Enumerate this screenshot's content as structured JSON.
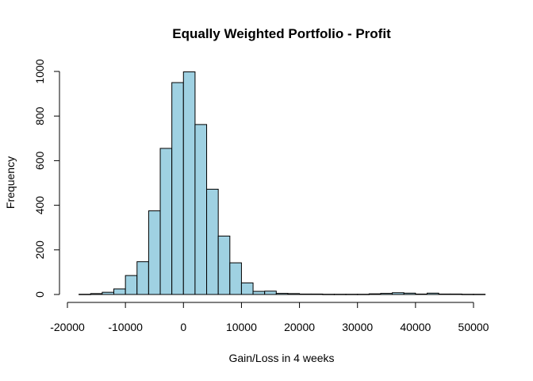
{
  "chart_data": {
    "type": "bar",
    "title": "Equally Weighted Portfolio - Profit",
    "xlabel": "Gain/Loss in 4 weeks",
    "ylabel": "Frequency",
    "bar_color": "#9fd1e2",
    "xlim": [
      -20000,
      52000
    ],
    "ylim": [
      0,
      1000
    ],
    "x_ticks": [
      -20000,
      -10000,
      0,
      10000,
      20000,
      30000,
      40000,
      50000
    ],
    "x_tick_labels": [
      "-20000",
      "-10000",
      "0",
      "10000",
      "20000",
      "30000",
      "40000",
      "50000"
    ],
    "y_ticks": [
      0,
      200,
      400,
      600,
      800,
      1000
    ],
    "y_tick_labels": [
      "0",
      "200",
      "400",
      "600",
      "800",
      "1000"
    ],
    "bin_width": 2000,
    "bins": [
      {
        "start": -18000,
        "count": 1
      },
      {
        "start": -16000,
        "count": 4
      },
      {
        "start": -14000,
        "count": 10
      },
      {
        "start": -12000,
        "count": 25
      },
      {
        "start": -10000,
        "count": 85
      },
      {
        "start": -8000,
        "count": 147
      },
      {
        "start": -6000,
        "count": 375
      },
      {
        "start": -4000,
        "count": 655
      },
      {
        "start": -2000,
        "count": 950
      },
      {
        "start": 0,
        "count": 998
      },
      {
        "start": 2000,
        "count": 762
      },
      {
        "start": 4000,
        "count": 472
      },
      {
        "start": 6000,
        "count": 262
      },
      {
        "start": 8000,
        "count": 142
      },
      {
        "start": 10000,
        "count": 52
      },
      {
        "start": 12000,
        "count": 14
      },
      {
        "start": 14000,
        "count": 15
      },
      {
        "start": 16000,
        "count": 5
      },
      {
        "start": 18000,
        "count": 4
      },
      {
        "start": 20000,
        "count": 2
      },
      {
        "start": 22000,
        "count": 2
      },
      {
        "start": 24000,
        "count": 1
      },
      {
        "start": 26000,
        "count": 1
      },
      {
        "start": 28000,
        "count": 1
      },
      {
        "start": 30000,
        "count": 1
      },
      {
        "start": 32000,
        "count": 3
      },
      {
        "start": 34000,
        "count": 5
      },
      {
        "start": 36000,
        "count": 8
      },
      {
        "start": 38000,
        "count": 6
      },
      {
        "start": 40000,
        "count": 2
      },
      {
        "start": 42000,
        "count": 6
      },
      {
        "start": 44000,
        "count": 2
      },
      {
        "start": 46000,
        "count": 2
      },
      {
        "start": 48000,
        "count": 1
      },
      {
        "start": 50000,
        "count": 1
      }
    ]
  }
}
